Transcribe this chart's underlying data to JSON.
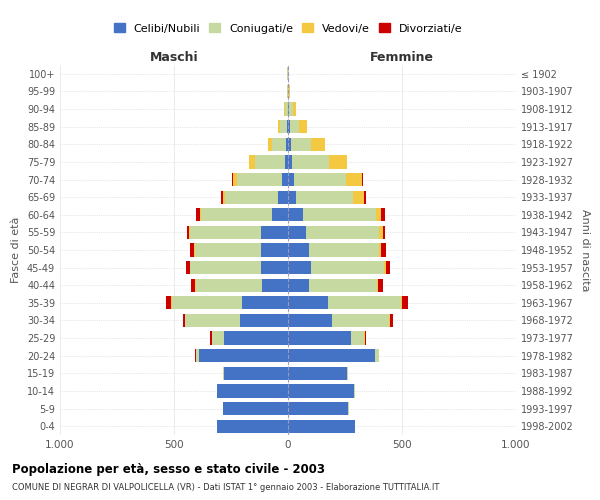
{
  "age_groups": [
    "0-4",
    "5-9",
    "10-14",
    "15-19",
    "20-24",
    "25-29",
    "30-34",
    "35-39",
    "40-44",
    "45-49",
    "50-54",
    "55-59",
    "60-64",
    "65-69",
    "70-74",
    "75-79",
    "80-84",
    "85-89",
    "90-94",
    "95-99",
    "100+"
  ],
  "birth_years": [
    "1998-2002",
    "1993-1997",
    "1988-1992",
    "1983-1987",
    "1978-1982",
    "1973-1977",
    "1968-1972",
    "1963-1967",
    "1958-1962",
    "1953-1957",
    "1948-1952",
    "1943-1947",
    "1938-1942",
    "1933-1937",
    "1928-1932",
    "1923-1927",
    "1918-1922",
    "1913-1917",
    "1908-1912",
    "1903-1907",
    "≤ 1902"
  ],
  "male": {
    "celibi": [
      310,
      285,
      310,
      280,
      390,
      280,
      210,
      200,
      115,
      120,
      120,
      120,
      70,
      45,
      25,
      15,
      8,
      5,
      2,
      2,
      2
    ],
    "coniugati": [
      1,
      1,
      2,
      5,
      15,
      55,
      240,
      310,
      290,
      310,
      290,
      310,
      310,
      230,
      200,
      130,
      60,
      30,
      12,
      3,
      1
    ],
    "vedovi": [
      0,
      0,
      0,
      0,
      0,
      0,
      0,
      1,
      1,
      2,
      2,
      3,
      5,
      10,
      15,
      25,
      20,
      10,
      5,
      1,
      0
    ],
    "divorziati": [
      0,
      0,
      0,
      0,
      2,
      5,
      10,
      22,
      20,
      15,
      20,
      12,
      18,
      8,
      5,
      0,
      0,
      0,
      0,
      0,
      0
    ]
  },
  "female": {
    "nubili": [
      295,
      265,
      290,
      260,
      380,
      275,
      195,
      175,
      90,
      100,
      90,
      80,
      65,
      35,
      25,
      18,
      12,
      8,
      5,
      2,
      2
    ],
    "coniugate": [
      1,
      1,
      2,
      5,
      18,
      60,
      250,
      320,
      300,
      320,
      310,
      320,
      320,
      250,
      230,
      160,
      90,
      40,
      15,
      4,
      1
    ],
    "vedove": [
      0,
      0,
      0,
      0,
      0,
      1,
      2,
      3,
      5,
      8,
      10,
      15,
      25,
      50,
      70,
      80,
      60,
      35,
      15,
      2,
      0
    ],
    "divorziate": [
      0,
      0,
      0,
      0,
      2,
      5,
      12,
      28,
      22,
      18,
      22,
      12,
      15,
      8,
      5,
      0,
      0,
      0,
      0,
      0,
      0
    ]
  },
  "colors": {
    "celibi": "#4472C4",
    "coniugati": "#C5D9A0",
    "vedovi": "#F5C842",
    "divorziati": "#CC0000"
  },
  "xlim": 1000,
  "title": "Popolazione per età, sesso e stato civile - 2003",
  "subtitle": "COMUNE DI NEGRAR DI VALPOLICELLA (VR) - Dati ISTAT 1° gennaio 2003 - Elaborazione TUTTITALIA.IT",
  "ylabel_left": "Fasce di età",
  "ylabel_right": "Anni di nascita",
  "legend_labels": [
    "Celibi/Nubili",
    "Coniugati/e",
    "Vedovi/e",
    "Divorziati/e"
  ],
  "maschi_label": "Maschi",
  "femmine_label": "Femmine",
  "maschi_color": "#333333",
  "femmine_color": "#333333",
  "background_color": "#ffffff",
  "grid_color": "#cccccc"
}
